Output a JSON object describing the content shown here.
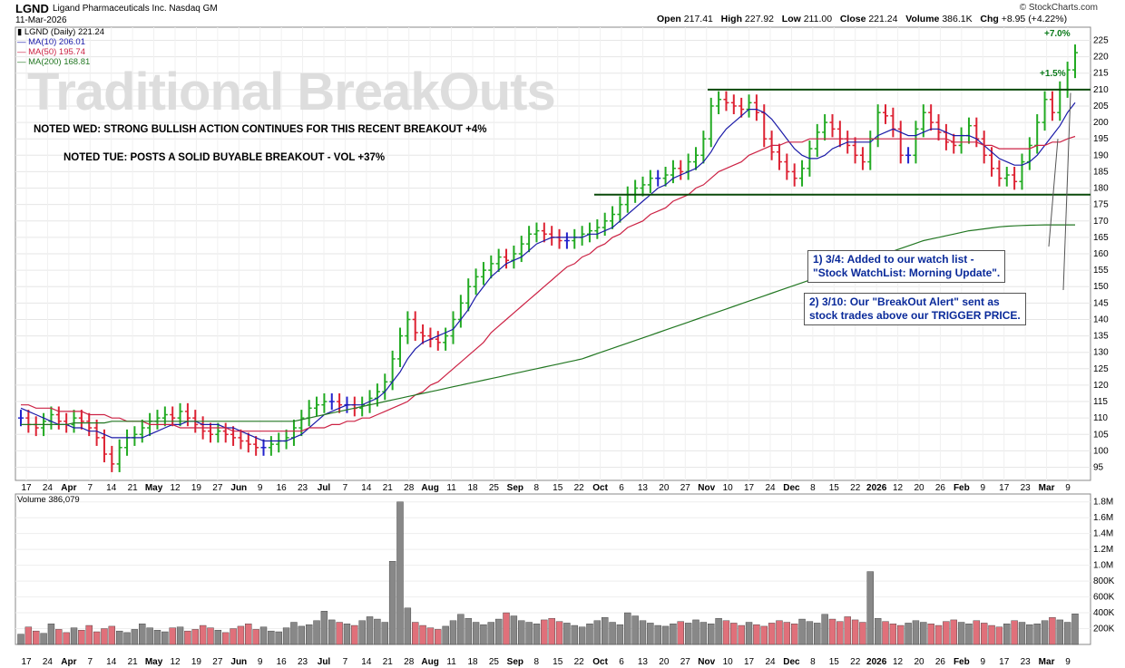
{
  "header": {
    "symbol": "LGND",
    "company": "Ligand Pharmaceuticals Inc.  Nasdaq GM",
    "date": "11-Mar-2026",
    "open_label": "Open",
    "open": "217.41",
    "high_label": "High",
    "high": "227.92",
    "low_label": "Low",
    "low": "211.00",
    "close_label": "Close",
    "close": "221.24",
    "volume_label": "Volume",
    "volume": "386.1K",
    "chg_label": "Chg",
    "chg": "+8.95 (+4.22%)",
    "source": "© StockCharts.com"
  },
  "legend": {
    "price": "LGND (Daily) 221.24",
    "ma10": "MA(10) 206.01",
    "ma50": "MA(50) 195.74",
    "ma200": "MA(200) 168.81",
    "volume": "Volume 386,079"
  },
  "colors": {
    "up": "#22aa22",
    "down": "#dd2233",
    "neutral": "#2222cc",
    "ma10": "#1a1aa8",
    "ma50": "#cc2244",
    "ma200": "#227722",
    "vol_up": "#888888",
    "vol_down": "#e0707a"
  },
  "annotations": {
    "watermark": "Traditional BreakOuts",
    "note_wed": "NOTED WED: STRONG BULLISH ACTION CONTINUES FOR THIS RECENT BREAKOUT +4%",
    "note_tue": "NOTED TUE: POSTS A SOLID BUYABLE BREAKOUT - VOL +37%",
    "box1_line1": "1) 3/4: Added to our watch list -",
    "box1_line2": "\"Stock WatchList: Morning Update\".",
    "box2_line1": "2) 3/10: Our \"BreakOut Alert\" sent as",
    "box2_line2": "stock trades above our TRIGGER PRICE.",
    "pct1": "+7.0%",
    "pct2": "+1.5%"
  },
  "chart_data": {
    "type": "line",
    "title": "LGND Ligand Pharmaceuticals Inc. Nasdaq GM",
    "price_ylim": [
      91,
      229
    ],
    "price_ticks": [
      95,
      100,
      105,
      110,
      115,
      120,
      125,
      130,
      135,
      140,
      145,
      150,
      155,
      160,
      165,
      170,
      175,
      180,
      185,
      190,
      195,
      200,
      205,
      210,
      215,
      220,
      225
    ],
    "resistance": 210,
    "support": 178,
    "volume_ticks": [
      "200K",
      "400K",
      "600K",
      "800K",
      "1.0M",
      "1.2M",
      "1.4M",
      "1.6M",
      "1.8M"
    ],
    "volume_tick_values": [
      200000,
      400000,
      600000,
      800000,
      1000000,
      1200000,
      1400000,
      1600000,
      1800000
    ],
    "x_tick_labels": [
      "17",
      "24",
      "Apr",
      "7",
      "14",
      "21",
      "May",
      "12",
      "19",
      "27",
      "Jun",
      "9",
      "16",
      "23",
      "Jul",
      "7",
      "14",
      "21",
      "28",
      "Aug",
      "11",
      "18",
      "25",
      "Sep",
      "8",
      "15",
      "22",
      "Oct",
      "6",
      "13",
      "20",
      "27",
      "Nov",
      "10",
      "17",
      "24",
      "Dec",
      "8",
      "15",
      "22",
      "2026",
      "12",
      "20",
      "26",
      "Feb",
      "9",
      "17",
      "23",
      "Mar",
      "9"
    ],
    "series": [
      {
        "name": "LGND (Daily)",
        "values": [
          110,
          108,
          107,
          109,
          111,
          109,
          108,
          110,
          109,
          107,
          104,
          99,
          96,
          101,
          104,
          105,
          107,
          109,
          110,
          111,
          110,
          112,
          110,
          108,
          106,
          105,
          106,
          105,
          104,
          103,
          102,
          101,
          101,
          102,
          103,
          104,
          107,
          110,
          113,
          114,
          115,
          115,
          114,
          114,
          113,
          114,
          116,
          118,
          121,
          128,
          135,
          140,
          136,
          135,
          134,
          133,
          135,
          140,
          145,
          150,
          153,
          155,
          157,
          159,
          158,
          160,
          163,
          166,
          167,
          166,
          165,
          164,
          164,
          165,
          166,
          167,
          168,
          170,
          172,
          175,
          178,
          180,
          181,
          183,
          183,
          184,
          186,
          185,
          188,
          190,
          195,
          205,
          207,
          206,
          205,
          204,
          206,
          203,
          195,
          191,
          188,
          185,
          183,
          186,
          192,
          197,
          200,
          198,
          195,
          193,
          190,
          188,
          195,
          203,
          202,
          198,
          190,
          190,
          198,
          203,
          200,
          197,
          194,
          193,
          196,
          199,
          195,
          190,
          186,
          183,
          184,
          182,
          188,
          193,
          200,
          207,
          203,
          210,
          216,
          221.24
        ]
      },
      {
        "name": "MA(10)",
        "values": [
          113,
          112,
          111,
          110,
          109,
          108,
          108,
          107,
          107,
          106,
          106,
          105,
          104,
          104,
          104,
          104,
          104,
          105,
          106,
          107,
          108,
          108,
          109,
          109,
          108,
          108,
          108,
          107,
          107,
          106,
          105,
          104,
          103,
          103,
          103,
          103,
          104,
          105,
          107,
          109,
          111,
          112,
          113,
          114,
          114,
          114,
          115,
          116,
          118,
          121,
          124,
          128,
          131,
          133,
          134,
          135,
          136,
          137,
          140,
          143,
          147,
          150,
          153,
          155,
          157,
          158,
          159,
          161,
          163,
          164,
          165,
          165,
          165,
          165,
          165,
          166,
          166,
          167,
          168,
          170,
          172,
          174,
          176,
          178,
          180,
          181,
          183,
          184,
          185,
          186,
          188,
          191,
          195,
          198,
          200,
          202,
          204,
          204,
          203,
          201,
          198,
          195,
          192,
          190,
          189,
          189,
          190,
          192,
          193,
          194,
          194,
          194,
          194,
          196,
          197,
          198,
          197,
          196,
          196,
          197,
          198,
          198,
          197,
          196,
          196,
          196,
          195,
          193,
          191,
          189,
          188,
          187,
          187,
          188,
          190,
          193,
          196,
          199,
          203,
          206.01
        ]
      },
      {
        "name": "MA(50)",
        "values": [
          114,
          114,
          113,
          113,
          113,
          112,
          112,
          112,
          112,
          111,
          111,
          111,
          110,
          110,
          109,
          109,
          109,
          108,
          108,
          108,
          108,
          107,
          107,
          107,
          107,
          107,
          107,
          107,
          106,
          106,
          106,
          106,
          106,
          106,
          106,
          106,
          106,
          106,
          107,
          107,
          107,
          108,
          108,
          109,
          109,
          110,
          110,
          111,
          112,
          113,
          114,
          115,
          117,
          118,
          120,
          121,
          123,
          125,
          127,
          129,
          131,
          133,
          136,
          138,
          140,
          142,
          144,
          146,
          148,
          150,
          152,
          154,
          156,
          157,
          159,
          160,
          162,
          163,
          165,
          166,
          168,
          169,
          170,
          172,
          173,
          174,
          176,
          177,
          178,
          180,
          181,
          183,
          185,
          186,
          187,
          188,
          190,
          191,
          192,
          193,
          193,
          194,
          194,
          194,
          195,
          195,
          195,
          195,
          195,
          195,
          195,
          195,
          195,
          195,
          195,
          195,
          195,
          195,
          195,
          195,
          195,
          195,
          195,
          194,
          194,
          194,
          194,
          193,
          193,
          192,
          192,
          192,
          192,
          192,
          193,
          193,
          194,
          194,
          195,
          195.74
        ]
      },
      {
        "name": "MA(200)",
        "values": [
          108,
          108,
          108,
          108,
          108,
          108,
          108,
          108.5,
          108.5,
          108.5,
          108.5,
          108.5,
          109,
          109,
          109,
          109,
          109,
          109,
          109,
          109,
          109,
          109,
          109,
          109,
          109,
          109,
          109,
          109,
          109,
          109,
          109,
          109,
          109,
          109,
          109,
          109,
          109,
          109.5,
          110,
          110.5,
          111,
          111.5,
          112,
          112.5,
          113,
          113.5,
          114,
          114.5,
          115,
          115.5,
          116,
          116.5,
          117,
          117.5,
          118,
          118.5,
          119,
          119.5,
          120,
          120.5,
          121,
          121.5,
          122,
          122.5,
          123,
          123.5,
          124,
          124.5,
          125,
          125.5,
          126,
          126.5,
          127,
          127.5,
          128,
          128.8,
          129.6,
          130.4,
          131.2,
          132,
          132.8,
          133.6,
          134.4,
          135.2,
          136,
          136.8,
          137.6,
          138.4,
          139.2,
          140,
          140.8,
          141.6,
          142.4,
          143.2,
          144,
          144.8,
          145.6,
          146.4,
          147.2,
          148,
          148.8,
          149.6,
          150.4,
          151.2,
          152,
          152.8,
          153.6,
          154.4,
          155.2,
          156,
          156.8,
          157.6,
          158.4,
          159.2,
          160,
          160.8,
          161.6,
          162.4,
          163.2,
          164,
          164.5,
          165,
          165.5,
          166,
          166.5,
          167,
          167.3,
          167.6,
          167.9,
          168.2,
          168.4,
          168.5,
          168.6,
          168.7,
          168.75,
          168.8,
          168.81,
          168.81,
          168.81,
          168.81
        ]
      },
      {
        "name": "Volume",
        "values": [
          130000,
          220000,
          170000,
          140000,
          260000,
          190000,
          150000,
          210000,
          180000,
          240000,
          160000,
          200000,
          230000,
          170000,
          150000,
          190000,
          260000,
          210000,
          180000,
          160000,
          210000,
          220000,
          170000,
          190000,
          240000,
          210000,
          180000,
          150000,
          200000,
          230000,
          260000,
          190000,
          220000,
          170000,
          160000,
          210000,
          280000,
          230000,
          250000,
          300000,
          420000,
          310000,
          280000,
          260000,
          240000,
          300000,
          350000,
          320000,
          280000,
          1050000,
          1800000,
          460000,
          280000,
          240000,
          210000,
          190000,
          230000,
          300000,
          380000,
          330000,
          280000,
          250000,
          280000,
          320000,
          400000,
          360000,
          300000,
          280000,
          260000,
          310000,
          330000,
          290000,
          270000,
          240000,
          220000,
          260000,
          300000,
          340000,
          280000,
          250000,
          400000,
          360000,
          300000,
          270000,
          240000,
          230000,
          260000,
          290000,
          270000,
          310000,
          280000,
          260000,
          330000,
          300000,
          270000,
          240000,
          280000,
          250000,
          230000,
          270000,
          300000,
          280000,
          260000,
          320000,
          290000,
          270000,
          380000,
          320000,
          290000,
          350000,
          310000,
          280000,
          920000,
          330000,
          290000,
          260000,
          240000,
          270000,
          300000,
          280000,
          260000,
          240000,
          290000,
          310000,
          280000,
          260000,
          300000,
          270000,
          240000,
          220000,
          260000,
          300000,
          280000,
          250000,
          260000,
          300000,
          340000,
          310000,
          280000,
          386079
        ]
      }
    ]
  }
}
